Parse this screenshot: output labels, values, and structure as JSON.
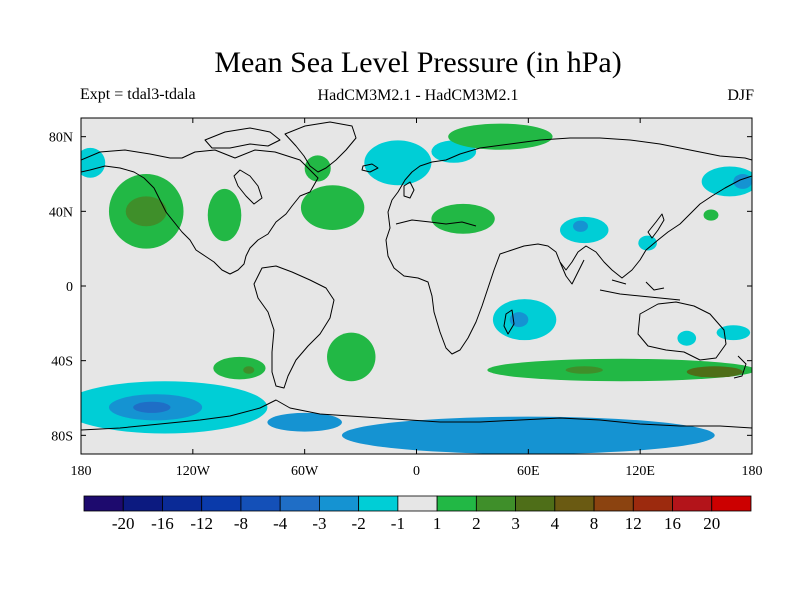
{
  "title": "Mean Sea Level Pressure (in hPa)",
  "subtitle_left": "Expt = tdal3-tdala",
  "subtitle_center": "HadCM3M2.1 - HadCM3M2.1",
  "subtitle_right": "DJF",
  "chart_data": {
    "type": "map-contour",
    "lon_range": [
      -180,
      180
    ],
    "lat_range": [
      -90,
      90
    ],
    "x_ticks": [
      {
        "lon": -180,
        "label": "180"
      },
      {
        "lon": -120,
        "label": "120W"
      },
      {
        "lon": -60,
        "label": "60W"
      },
      {
        "lon": 0,
        "label": "0"
      },
      {
        "lon": 60,
        "label": "60E"
      },
      {
        "lon": 120,
        "label": "120E"
      },
      {
        "lon": 180,
        "label": "180"
      }
    ],
    "y_ticks": [
      {
        "lat": 80,
        "label": "80N"
      },
      {
        "lat": 40,
        "label": "40N"
      },
      {
        "lat": 0,
        "label": "0"
      },
      {
        "lat": -40,
        "label": "40S"
      },
      {
        "lat": -80,
        "label": "80S"
      }
    ],
    "colorbar": {
      "colors": [
        "#1d0a6e",
        "#0c1a80",
        "#0a2a96",
        "#0a3aaa",
        "#1450b8",
        "#1f6ec6",
        "#1593d2",
        "#00ced6",
        "#e6e6e6",
        "#22b845",
        "#3f8f2a",
        "#4e6e18",
        "#6a5a12",
        "#8b4310",
        "#9c2a0e",
        "#b3141a",
        "#cc0000"
      ],
      "labels": [
        "-20",
        "-16",
        "-12",
        "-8",
        "-4",
        "-3",
        "-2",
        "-1",
        "1",
        "2",
        "3",
        "4",
        "8",
        "12",
        "16",
        "20"
      ]
    },
    "regions": [
      {
        "level": "-2",
        "lon": -175,
        "lat": 66,
        "rlon": 8,
        "rlat": 8
      },
      {
        "level": "2",
        "lon": -145,
        "lat": 40,
        "rlon": 20,
        "rlat": 20
      },
      {
        "level": "3",
        "lon": -145,
        "lat": 40,
        "rlon": 11,
        "rlat": 8
      },
      {
        "level": "2",
        "lon": -103,
        "lat": 38,
        "rlon": 9,
        "rlat": 14
      },
      {
        "level": "2",
        "lon": -45,
        "lat": 42,
        "rlon": 17,
        "rlat": 12
      },
      {
        "level": "2",
        "lon": -53,
        "lat": 63,
        "rlon": 7,
        "rlat": 7
      },
      {
        "level": "-2",
        "lon": -10,
        "lat": 66,
        "rlon": 18,
        "rlat": 12
      },
      {
        "level": "-2",
        "lon": 20,
        "lat": 72,
        "rlon": 12,
        "rlat": 6
      },
      {
        "level": "2",
        "lon": 45,
        "lat": 80,
        "rlon": 28,
        "rlat": 7
      },
      {
        "level": "2",
        "lon": 25,
        "lat": 36,
        "rlon": 17,
        "rlat": 8
      },
      {
        "level": "-2",
        "lon": 90,
        "lat": 30,
        "rlon": 13,
        "rlat": 7
      },
      {
        "level": "-3",
        "lon": 88,
        "lat": 32,
        "rlon": 4,
        "rlat": 3
      },
      {
        "level": "-2",
        "lon": 124,
        "lat": 23,
        "rlon": 5,
        "rlat": 4
      },
      {
        "level": "2",
        "lon": 158,
        "lat": 38,
        "rlon": 4,
        "rlat": 3
      },
      {
        "level": "-2",
        "lon": 168,
        "lat": 56,
        "rlon": 15,
        "rlat": 8
      },
      {
        "level": "-3",
        "lon": 175,
        "lat": 56,
        "rlon": 5,
        "rlat": 4
      },
      {
        "level": "-2",
        "lon": 58,
        "lat": -18,
        "rlon": 17,
        "rlat": 11
      },
      {
        "level": "-3",
        "lon": 55,
        "lat": -18,
        "rlon": 5,
        "rlat": 4
      },
      {
        "level": "2",
        "lon": -35,
        "lat": -38,
        "rlon": 13,
        "rlat": 13
      },
      {
        "level": "2",
        "lon": -95,
        "lat": -44,
        "rlon": 14,
        "rlat": 6
      },
      {
        "level": "3",
        "lon": -90,
        "lat": -45,
        "rlon": 3,
        "rlat": 2
      },
      {
        "level": "2",
        "lon": 110,
        "lat": -45,
        "rlon": 72,
        "rlat": 6
      },
      {
        "level": "3",
        "lon": 90,
        "lat": -45,
        "rlon": 10,
        "rlat": 2
      },
      {
        "level": "4",
        "lon": 160,
        "lat": -46,
        "rlon": 15,
        "rlat": 3
      },
      {
        "level": "-2",
        "lon": 145,
        "lat": -28,
        "rlon": 5,
        "rlat": 4
      },
      {
        "level": "-2",
        "lon": 170,
        "lat": -25,
        "rlon": 9,
        "rlat": 4
      },
      {
        "level": "-2",
        "lon": -135,
        "lat": -65,
        "rlon": 55,
        "rlat": 14
      },
      {
        "level": "-3",
        "lon": -140,
        "lat": -65,
        "rlon": 25,
        "rlat": 7
      },
      {
        "level": "-4",
        "lon": -142,
        "lat": -65,
        "rlon": 10,
        "rlat": 3
      },
      {
        "level": "-3",
        "lon": 60,
        "lat": -80,
        "rlon": 100,
        "rlat": 10
      },
      {
        "level": "-3",
        "lon": -60,
        "lat": -73,
        "rlon": 20,
        "rlat": 5
      }
    ]
  }
}
